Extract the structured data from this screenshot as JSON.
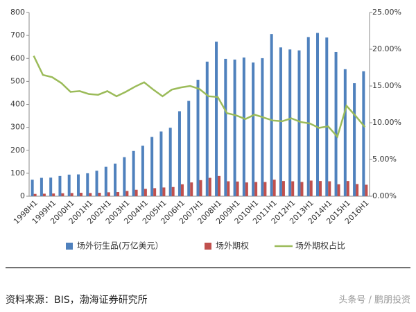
{
  "chart_data": {
    "type": "bar_line",
    "categories": [
      "1998H1",
      null,
      "1999H1",
      null,
      "2000H1",
      null,
      "2001H1",
      null,
      "2002H1",
      null,
      "2003H1",
      null,
      "2004H1",
      null,
      "2005H1",
      null,
      "2006H1",
      null,
      "2007H1",
      null,
      "2008H1",
      null,
      "2009H1",
      null,
      "2010H1",
      null,
      "2011H1",
      null,
      "2012H1",
      null,
      "2013H1",
      null,
      "2014H1",
      null,
      "2015H1",
      null,
      "2016H1"
    ],
    "series": [
      {
        "name": "场外衍生品(万亿美元）",
        "color": "#4f81bd",
        "kind": "bar",
        "values": [
          72,
          80,
          81,
          88,
          94,
          95,
          100,
          111,
          128,
          142,
          170,
          197,
          220,
          258,
          282,
          298,
          370,
          415,
          507,
          586,
          673,
          598,
          595,
          604,
          582,
          601,
          706,
          648,
          639,
          635,
          693,
          711,
          691,
          628,
          553,
          492,
          544
        ]
      },
      {
        "name": "场外期权",
        "color": "#c0504d",
        "kind": "bar",
        "values": [
          10,
          11,
          12,
          13,
          14,
          15,
          14,
          15,
          17,
          18,
          23,
          28,
          32,
          35,
          38,
          40,
          52,
          60,
          70,
          80,
          88,
          65,
          64,
          60,
          62,
          62,
          72,
          66,
          65,
          62,
          68,
          66,
          65,
          52,
          66,
          53,
          50
        ]
      },
      {
        "name": "场外期权占比",
        "color": "#9bbb59",
        "kind": "line",
        "axis": "y2",
        "values": [
          19.1,
          16.5,
          16.2,
          15.4,
          14.2,
          14.3,
          13.9,
          13.8,
          14.3,
          13.6,
          14.2,
          14.9,
          15.5,
          14.5,
          13.6,
          14.5,
          14.8,
          15.0,
          14.6,
          13.6,
          13.5,
          11.3,
          11.0,
          10.5,
          11.1,
          10.7,
          10.3,
          10.2,
          10.6,
          10.1,
          9.9,
          9.3,
          9.5,
          8.1,
          12.3,
          10.9,
          9.4
        ]
      }
    ],
    "ylim": [
      0,
      800
    ],
    "yticks": [
      0,
      100,
      200,
      300,
      400,
      500,
      600,
      700,
      800
    ],
    "y2lim": [
      0,
      25
    ],
    "y2ticks": [
      {
        "value": 0,
        "label": "0.00%"
      },
      {
        "value": 5,
        "label": "5.00%"
      },
      {
        "value": 10,
        "label": "10.00%"
      },
      {
        "value": 15,
        "label": "15.00%"
      },
      {
        "value": 20,
        "label": "20.00%"
      },
      {
        "value": 25,
        "label": "25.00%"
      }
    ],
    "legend": "bottom",
    "source": "资料来源：BIS，渤海证券研究所",
    "watermark": "头条号 / 鹏朋投资"
  }
}
